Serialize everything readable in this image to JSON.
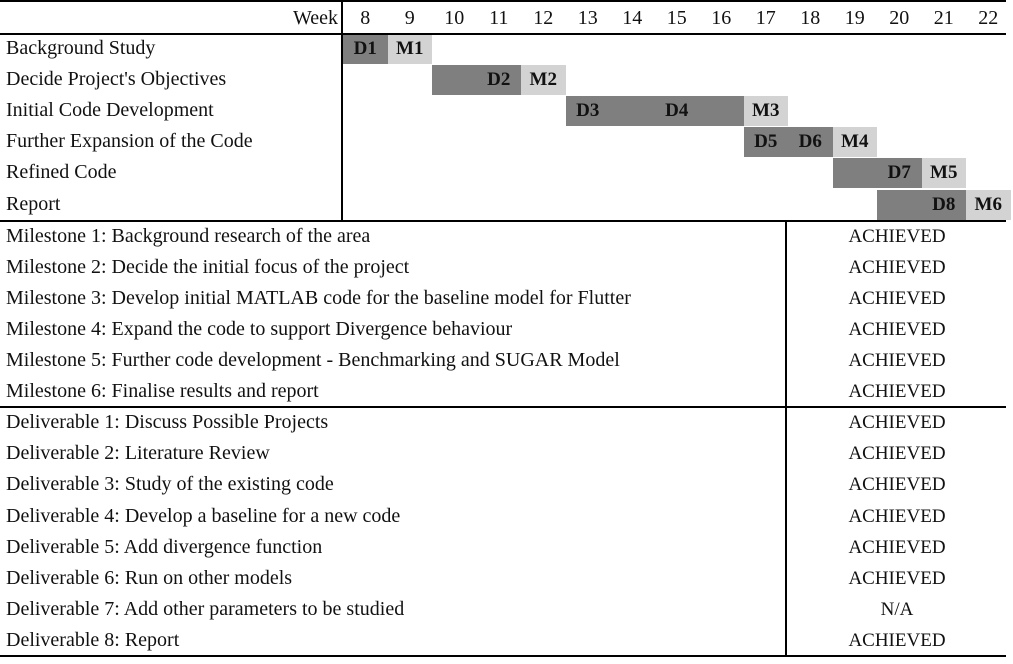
{
  "chart_data": {
    "type": "gantt",
    "header_label": "Week",
    "weeks": [
      8,
      9,
      10,
      11,
      12,
      13,
      14,
      15,
      16,
      17,
      18,
      19,
      20,
      21,
      22
    ],
    "colors": {
      "deliverable": "#7f7f7f",
      "milestone": "#d3d3d3"
    },
    "tasks": [
      {
        "name": "Background Study",
        "bars": [
          {
            "label": "D1",
            "kind": "deliverable",
            "start": 8,
            "end": 8
          },
          {
            "label": "M1",
            "kind": "milestone",
            "start": 9,
            "end": 9
          }
        ]
      },
      {
        "name": "Decide Project's Objectives",
        "bars": [
          {
            "label": "D2",
            "kind": "deliverable",
            "start": 10,
            "end": 11
          },
          {
            "label": "M2",
            "kind": "milestone",
            "start": 12,
            "end": 12
          }
        ]
      },
      {
        "name": "Initial Code Development",
        "bars": [
          {
            "label": "D3",
            "kind": "deliverable",
            "start": 13,
            "end": 13
          },
          {
            "label": "D4",
            "kind": "deliverable",
            "start": 14,
            "end": 16
          },
          {
            "label": "M3",
            "kind": "milestone",
            "start": 17,
            "end": 17
          }
        ]
      },
      {
        "name": "Further Expansion of the Code",
        "bars": [
          {
            "label": "D5",
            "kind": "deliverable",
            "start": 17,
            "end": 17
          },
          {
            "label": "D6",
            "kind": "deliverable",
            "start": 18,
            "end": 18
          },
          {
            "label": "M4",
            "kind": "milestone",
            "start": 19,
            "end": 19
          }
        ]
      },
      {
        "name": "Refined Code",
        "bars": [
          {
            "label": "D7",
            "kind": "deliverable",
            "start": 19,
            "end": 20
          },
          {
            "label": "M5",
            "kind": "milestone",
            "start": 21,
            "end": 21
          }
        ]
      },
      {
        "name": "Report",
        "bars": [
          {
            "label": "D8",
            "kind": "deliverable",
            "start": 20,
            "end": 21
          },
          {
            "label": "M6",
            "kind": "milestone",
            "start": 22,
            "end": 22
          }
        ]
      }
    ],
    "milestones": [
      {
        "text": "Milestone 1: Background research of the area",
        "status": "ACHIEVED"
      },
      {
        "text": "Milestone 2: Decide the initial focus of the project",
        "status": "ACHIEVED"
      },
      {
        "text": "Milestone 3: Develop initial MATLAB code for the baseline model for Flutter",
        "status": "ACHIEVED"
      },
      {
        "text": "Milestone 4: Expand the code to support Divergence behaviour",
        "status": "ACHIEVED"
      },
      {
        "text": "Milestone 5: Further code development - Benchmarking and SUGAR Model",
        "status": "ACHIEVED"
      },
      {
        "text": "Milestone 6: Finalise results and report",
        "status": "ACHIEVED"
      }
    ],
    "deliverables": [
      {
        "text": "Deliverable 1: Discuss Possible Projects",
        "status": "ACHIEVED"
      },
      {
        "text": "Deliverable 2: Literature Review",
        "status": "ACHIEVED"
      },
      {
        "text": "Deliverable 3: Study of the existing code",
        "status": "ACHIEVED"
      },
      {
        "text": "Deliverable 4: Develop a baseline for a new code",
        "status": "ACHIEVED"
      },
      {
        "text": "Deliverable 5: Add divergence function",
        "status": "ACHIEVED"
      },
      {
        "text": "Deliverable 6: Run on other models",
        "status": "ACHIEVED"
      },
      {
        "text": "Deliverable 7: Add other parameters to be studied",
        "status": "N/A"
      },
      {
        "text": "Deliverable 8: Report",
        "status": "ACHIEVED"
      }
    ]
  }
}
